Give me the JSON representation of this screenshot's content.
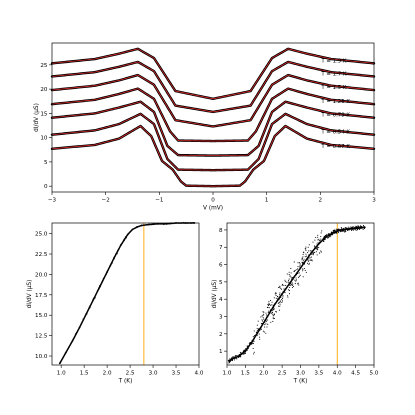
{
  "colors": {
    "data": "#000000",
    "fit": "#d62728",
    "marker_line": "#ffa500"
  },
  "chart_data": [
    {
      "type": "line",
      "xlabel": "V (mV)",
      "ylabel": "dI/dV (μS)",
      "xlim": [
        -3,
        3
      ],
      "ylim": [
        -1.2,
        29.5
      ],
      "xticks": [
        -3,
        -2,
        -1,
        0,
        1,
        2,
        3
      ],
      "xtick_labels": [
        "−3",
        "−2",
        "−1",
        "0",
        "1",
        "2",
        "3"
      ],
      "yticks": [
        0,
        5,
        10,
        15,
        20,
        25
      ],
      "ytick_labels": [
        "0",
        "5",
        "10",
        "15",
        "20",
        "25"
      ],
      "grid": false,
      "series": [
        {
          "name": "T = 1.9 K",
          "x": [
            -3,
            -2.2,
            -1.75,
            -1.4,
            -1.1,
            -0.7,
            0,
            0.7,
            1.1,
            1.4,
            1.75,
            2.2,
            3
          ],
          "y": [
            25.3,
            26.2,
            27.3,
            28.3,
            26.4,
            19.6,
            18.0,
            19.6,
            26.4,
            28.3,
            27.3,
            26.2,
            25.3
          ]
        },
        {
          "name": "T = 1.7 K",
          "x": [
            -3,
            -2.2,
            -1.75,
            -1.4,
            -1.1,
            -0.7,
            0,
            0.7,
            1.1,
            1.4,
            1.75,
            2.2,
            3
          ],
          "y": [
            22.6,
            23.5,
            24.6,
            25.6,
            23.7,
            16.6,
            15.3,
            16.6,
            23.7,
            25.6,
            24.6,
            23.5,
            22.6
          ]
        },
        {
          "name": "T = 1.5 K",
          "x": [
            -3,
            -2.2,
            -1.75,
            -1.4,
            -1.1,
            -0.7,
            0,
            0.7,
            1.1,
            1.4,
            1.75,
            2.2,
            3
          ],
          "y": [
            19.8,
            20.7,
            21.8,
            22.9,
            20.9,
            13.6,
            12.3,
            13.6,
            20.9,
            22.9,
            21.8,
            20.7,
            19.8
          ]
        },
        {
          "name": "T = 1.25 K",
          "x": [
            -3,
            -2.2,
            -1.75,
            -1.4,
            -1.1,
            -0.8,
            -0.65,
            0,
            0.65,
            0.8,
            1.1,
            1.4,
            1.75,
            2.2,
            3
          ],
          "y": [
            16.9,
            17.8,
            19.0,
            20.1,
            18.0,
            11.3,
            9.4,
            9.3,
            9.4,
            11.3,
            18.0,
            20.1,
            19.0,
            17.8,
            16.9
          ]
        },
        {
          "name": "T = 0.79 K",
          "x": [
            -3,
            -2.2,
            -1.75,
            -1.35,
            -1.1,
            -0.85,
            -0.65,
            0,
            0.65,
            0.85,
            1.1,
            1.35,
            1.75,
            2.2,
            3
          ],
          "y": [
            14.1,
            15.0,
            16.2,
            17.4,
            15.3,
            8.3,
            6.4,
            6.3,
            6.4,
            8.3,
            15.3,
            17.4,
            16.2,
            15.0,
            14.1
          ]
        },
        {
          "name": "T = 0.54 K",
          "x": [
            -3,
            -2.2,
            -1.75,
            -1.35,
            -1.1,
            -0.85,
            -0.65,
            0,
            0.65,
            0.85,
            1.1,
            1.35,
            1.75,
            2.2,
            3
          ],
          "y": [
            10.6,
            11.5,
            12.8,
            14.9,
            12.8,
            5.6,
            3.4,
            3.3,
            3.4,
            5.6,
            12.8,
            14.9,
            12.8,
            11.5,
            10.6
          ]
        },
        {
          "name": "T = 0.07 K",
          "x": [
            -3,
            -2.2,
            -1.75,
            -1.35,
            -1.15,
            -0.95,
            -0.75,
            -0.6,
            -0.5,
            0,
            0.5,
            0.6,
            0.75,
            0.95,
            1.15,
            1.35,
            1.75,
            2.2,
            3
          ],
          "y": [
            7.7,
            8.5,
            9.8,
            12.4,
            10.3,
            5.2,
            3.4,
            1.0,
            0.1,
            0.0,
            0.1,
            1.0,
            3.4,
            5.2,
            10.3,
            12.4,
            9.8,
            8.5,
            7.7
          ]
        }
      ]
    },
    {
      "type": "scatter",
      "xlabel": "T (K)",
      "ylabel": "dI/dV (μS)",
      "xlim": [
        0.8,
        4.0
      ],
      "ylim": [
        8.9,
        26.3
      ],
      "xticks": [
        1.0,
        1.5,
        2.0,
        2.5,
        3.0,
        3.5,
        4.0
      ],
      "xtick_labels": [
        "1.0",
        "1.5",
        "2.0",
        "2.5",
        "3.0",
        "3.5",
        "4.0"
      ],
      "yticks": [
        10.0,
        12.5,
        15.0,
        17.5,
        20.0,
        22.5,
        25.0
      ],
      "ytick_labels": [
        "10.0",
        "12.5",
        "15.0",
        "17.5",
        "20.0",
        "22.5",
        "25.0"
      ],
      "grid": false,
      "vline_x": 2.8,
      "x": [
        0.97,
        1.1,
        1.25,
        1.4,
        1.55,
        1.7,
        1.85,
        2.0,
        2.15,
        2.3,
        2.45,
        2.55,
        2.65,
        2.75,
        2.9,
        3.1,
        3.3,
        3.5,
        3.7,
        3.9
      ],
      "y": [
        9.1,
        10.4,
        11.9,
        13.5,
        15.2,
        16.9,
        18.6,
        20.3,
        22.0,
        23.6,
        24.9,
        25.5,
        25.8,
        26.0,
        26.1,
        26.2,
        26.2,
        26.3,
        26.3,
        26.3
      ]
    },
    {
      "type": "scatter",
      "xlabel": "T (K)",
      "ylabel": "dI/dV (μS)",
      "xlim": [
        1.0,
        5.0
      ],
      "ylim": [
        0.2,
        8.4
      ],
      "xticks": [
        1.0,
        1.5,
        2.0,
        2.5,
        3.0,
        3.5,
        4.0,
        4.5,
        5.0
      ],
      "xtick_labels": [
        "1.0",
        "1.5",
        "2.0",
        "2.5",
        "3.0",
        "3.5",
        "4.0",
        "4.5",
        "5.0"
      ],
      "yticks": [
        1,
        2,
        3,
        4,
        5,
        6,
        7,
        8
      ],
      "ytick_labels": [
        "1",
        "2",
        "3",
        "4",
        "5",
        "6",
        "7",
        "8"
      ],
      "grid": false,
      "vline_x": 4.0,
      "x": [
        1.05,
        1.3,
        1.5,
        1.7,
        1.9,
        2.1,
        2.3,
        2.5,
        2.7,
        2.9,
        3.1,
        3.3,
        3.5,
        3.7,
        3.9,
        4.0,
        4.1,
        4.3,
        4.5,
        4.75
      ],
      "y": [
        0.45,
        0.7,
        1.0,
        1.6,
        2.3,
        3.0,
        3.7,
        4.3,
        4.9,
        5.5,
        6.1,
        6.7,
        7.2,
        7.6,
        7.85,
        7.95,
        8.0,
        8.05,
        8.1,
        8.15
      ]
    }
  ]
}
